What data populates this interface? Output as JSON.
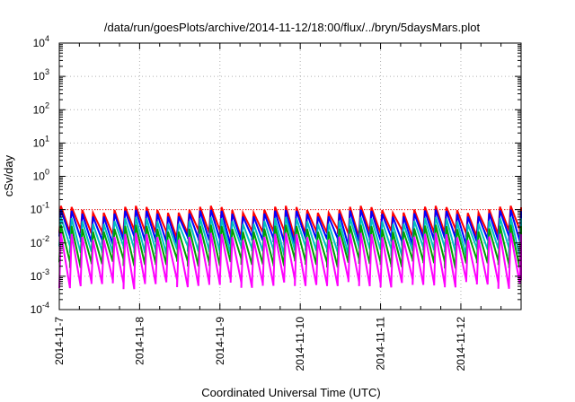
{
  "chart_data": {
    "type": "line",
    "title": "/data/run/goesPlots/archive/2014-11-12/18:00/flux/../bryn/5daysMars.plot",
    "xlabel": "Coordinated Universal Time (UTC)",
    "ylabel": "cSv/day",
    "y_scale": "log",
    "ylim": [
      0.0001,
      10000
    ],
    "xlim": [
      "2014-11-07T00:00",
      "2014-11-12T18:00"
    ],
    "x_ticks": [
      "2014-11-7",
      "2014-11-8",
      "2014-11-9",
      "2014-11-10",
      "2014-11-11",
      "2014-11-12"
    ],
    "y_ticks": [
      {
        "base": "10",
        "exp": "-4"
      },
      {
        "base": "10",
        "exp": "-3"
      },
      {
        "base": "10",
        "exp": "-2"
      },
      {
        "base": "10",
        "exp": "-1"
      },
      {
        "base": "10",
        "exp": "0"
      },
      {
        "base": "10",
        "exp": "1"
      },
      {
        "base": "10",
        "exp": "2"
      },
      {
        "base": "10",
        "exp": "3"
      },
      {
        "base": "10",
        "exp": "4"
      }
    ],
    "grid": true,
    "reference_line": {
      "y": 0.1,
      "color": "#ff0000",
      "style": "dotted"
    },
    "pattern": {
      "period_hours": 3.2,
      "peak_time_fraction": 0.15
    },
    "series": [
      {
        "color": "#ff0000",
        "peak": 0.13,
        "trough": 0.02
      },
      {
        "color": "#0000ff",
        "peak": 0.1,
        "trough": 0.012
      },
      {
        "color": "#00c0c0",
        "peak": 0.06,
        "trough": 0.006
      },
      {
        "color": "#00a000",
        "peak": 0.035,
        "trough": 0.0025
      },
      {
        "color": "#ff00ff",
        "peak": 0.02,
        "trough": 0.0006
      }
    ]
  }
}
